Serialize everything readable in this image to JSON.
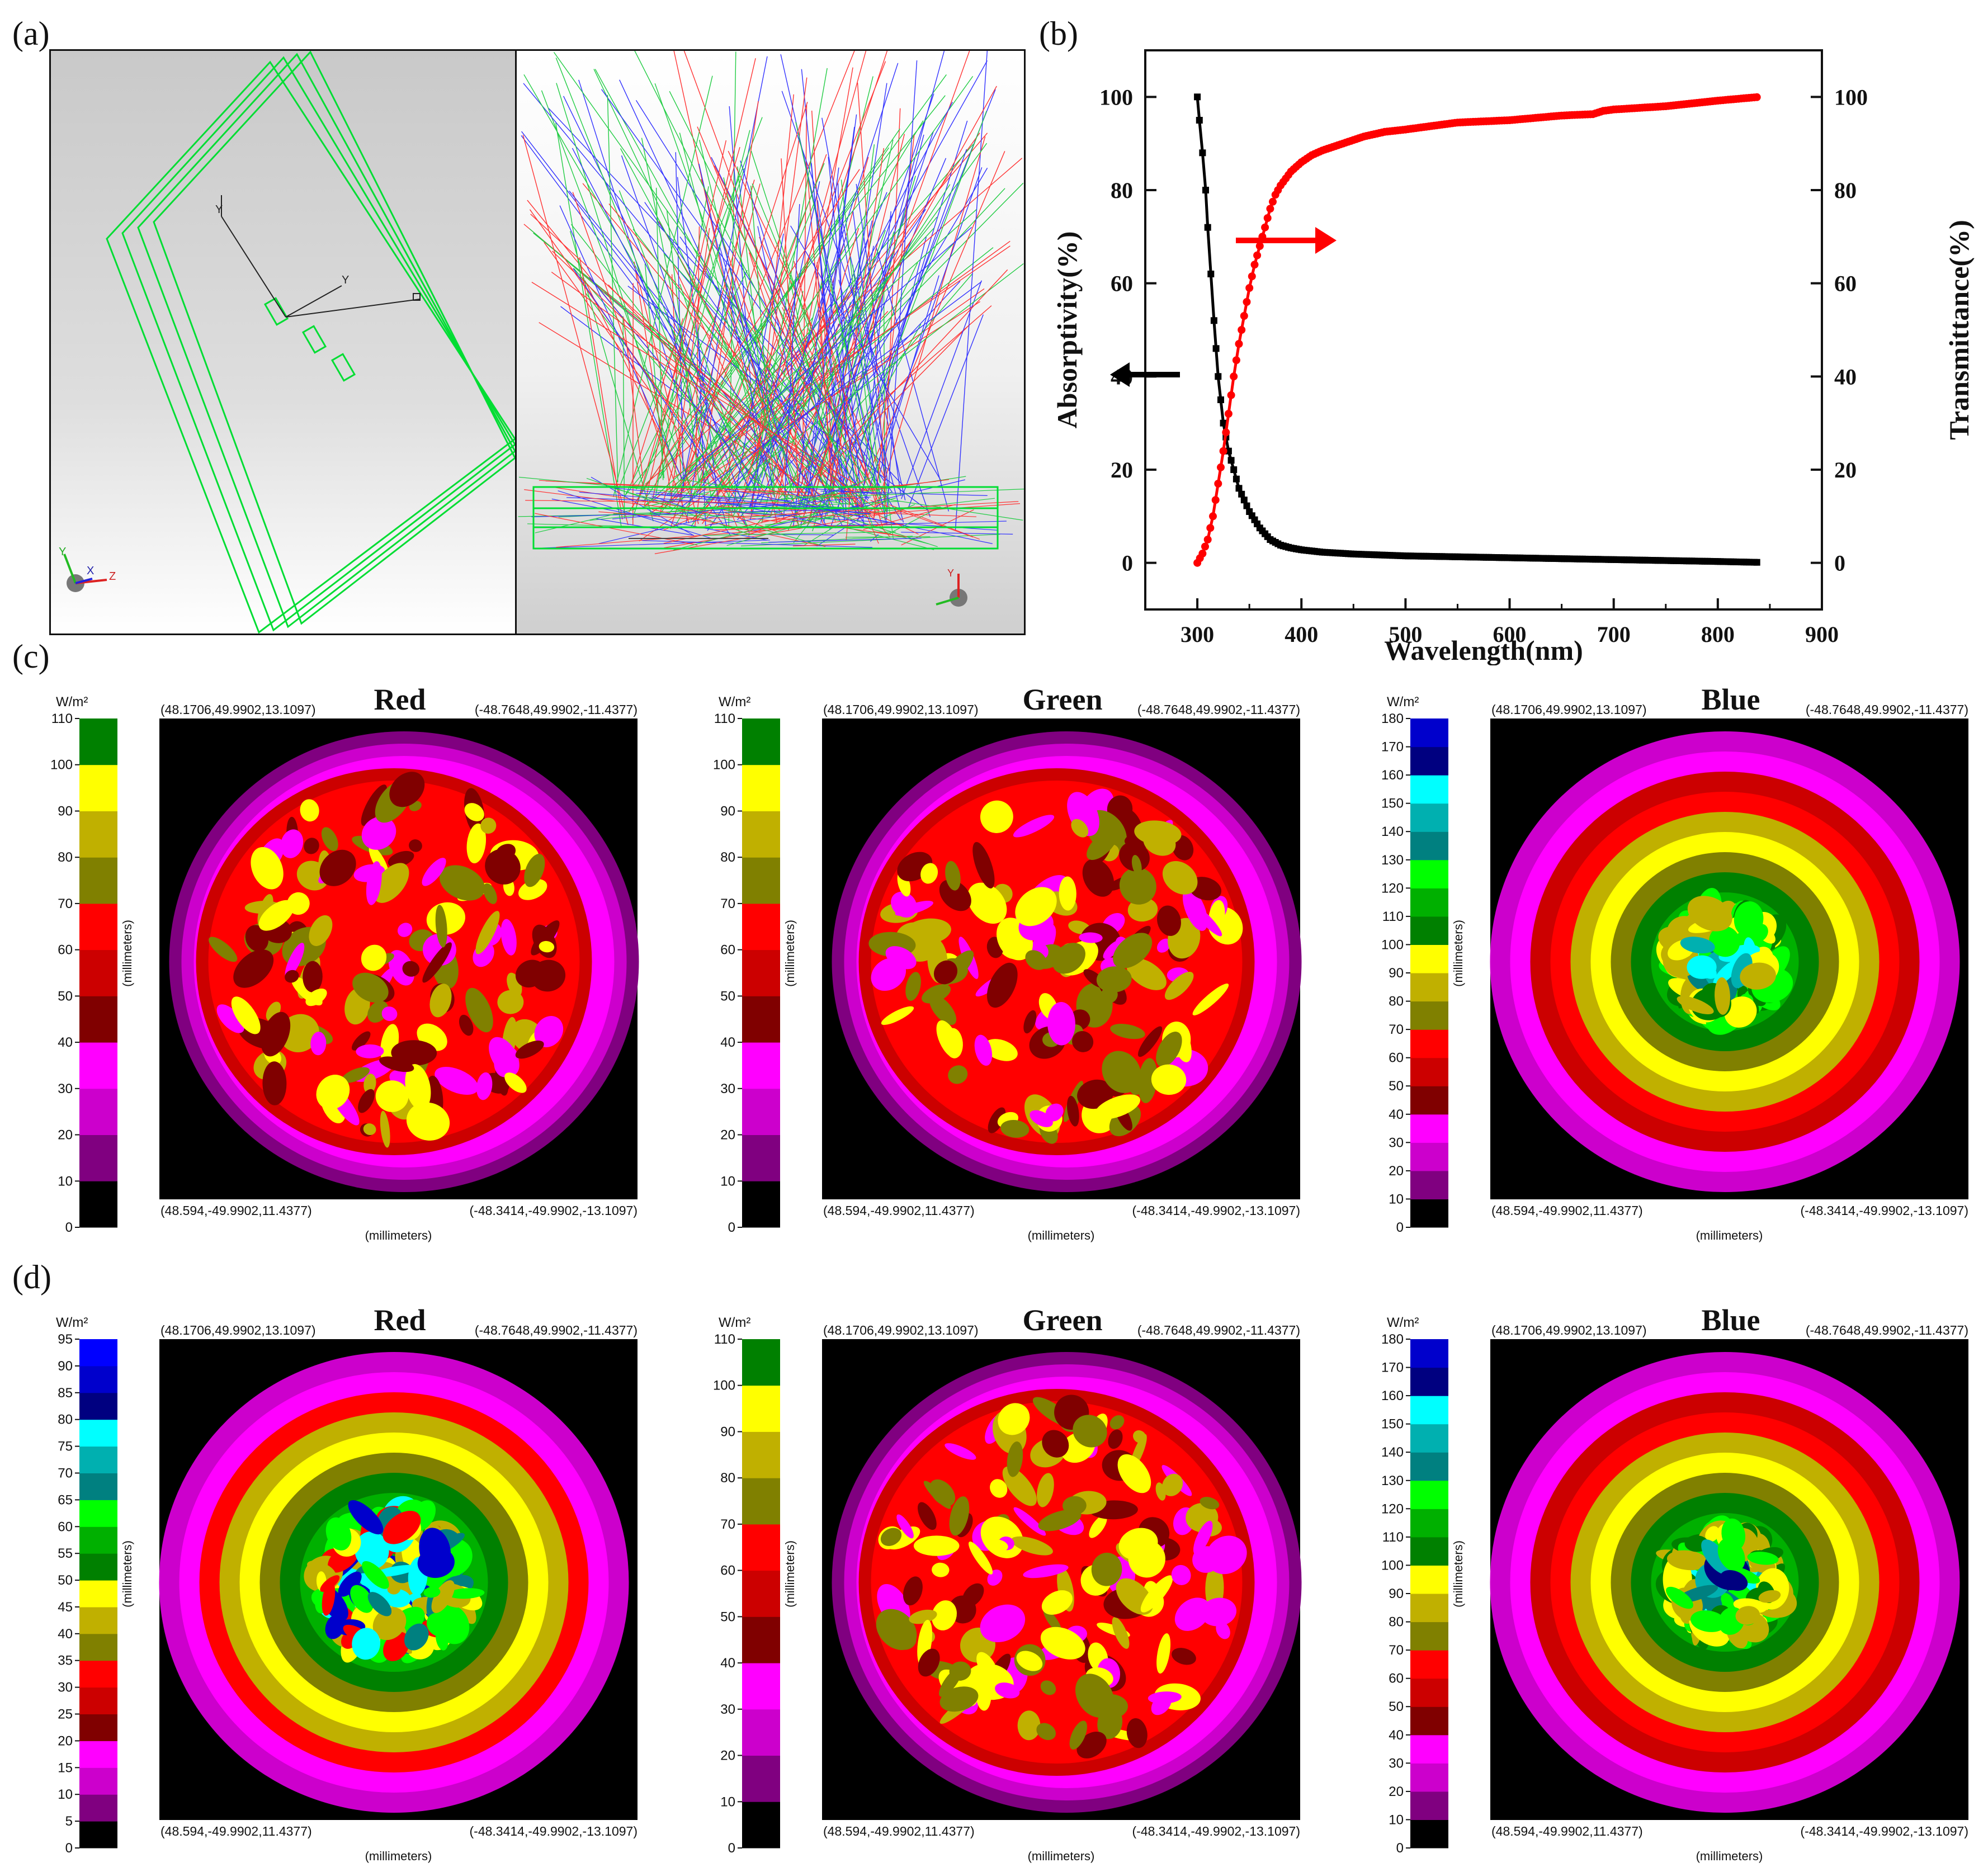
{
  "panel_labels": {
    "a": "(a)",
    "b": "(b)",
    "c": "(c)",
    "d": "(d)"
  },
  "panel_a": {
    "axis_labels": [
      "Y",
      "Y",
      "X",
      "Z",
      "Y",
      "Y"
    ]
  },
  "chart_data": [
    {
      "type": "line",
      "panel": "(b)",
      "xlabel": "Wavelength(nm)",
      "ylabel": "Absorptivity(%)",
      "ylabel_right": "Transmittance(%)",
      "xlim": [
        250,
        900
      ],
      "ylim": [
        -10,
        110
      ],
      "ylim_right": [
        -10,
        110
      ],
      "xticks": [
        300,
        400,
        500,
        600,
        700,
        800,
        900
      ],
      "yticks": [
        0,
        20,
        40,
        60,
        80,
        100
      ],
      "series": [
        {
          "name": "Absorptivity",
          "color": "#000000",
          "axis": "left",
          "x": [
            300,
            302,
            305,
            308,
            310,
            313,
            316,
            320,
            325,
            330,
            335,
            340,
            350,
            360,
            370,
            380,
            390,
            400,
            420,
            450,
            500,
            550,
            600,
            650,
            700,
            750,
            800,
            840
          ],
          "y": [
            100,
            95,
            88,
            80,
            72,
            62,
            52,
            40,
            30,
            24,
            20,
            16,
            11,
            7.5,
            5,
            3.8,
            3.2,
            2.8,
            2.3,
            1.9,
            1.5,
            1.3,
            1.1,
            0.9,
            0.7,
            0.5,
            0.3,
            0.1
          ]
        },
        {
          "name": "Transmittance",
          "color": "#ff0000",
          "axis": "right",
          "x": [
            300,
            305,
            310,
            315,
            320,
            325,
            330,
            335,
            340,
            345,
            350,
            355,
            360,
            365,
            370,
            375,
            380,
            390,
            400,
            410,
            420,
            440,
            460,
            480,
            500,
            550,
            600,
            650,
            680,
            690,
            700,
            750,
            800,
            840
          ],
          "y": [
            0,
            2,
            5,
            10,
            17,
            24,
            32,
            40,
            47,
            53,
            59,
            64,
            68,
            72,
            76,
            79,
            81,
            84,
            86,
            87.5,
            88.5,
            90,
            91.5,
            92.5,
            93,
            94.5,
            95,
            96,
            96.3,
            97,
            97.3,
            98,
            99.2,
            100
          ]
        }
      ],
      "annotations": [
        "arrow-left-black",
        "arrow-right-red"
      ]
    },
    {
      "type": "heatmap",
      "panel": "(c)",
      "title": "Red",
      "unit": "W/m²",
      "scale": [
        "0",
        "10",
        "20",
        "30",
        "40",
        "50",
        "60",
        "70",
        "80",
        "90",
        "100",
        "110"
      ],
      "coords": {
        "tl": "(48.1706,49.9902,13.1097)",
        "tr": "(-48.7648,49.9902,-11.4377)",
        "bl": "(48.594,-49.9902,11.4377)",
        "br": "(-48.3414,-49.9902,-13.1097)"
      },
      "axis_x": "(millimeters)",
      "axis_y": "(millimeters)"
    },
    {
      "type": "heatmap",
      "panel": "(c)",
      "title": "Green",
      "unit": "W/m²",
      "scale": [
        "0",
        "10",
        "20",
        "30",
        "40",
        "50",
        "60",
        "70",
        "80",
        "90",
        "100",
        "110"
      ],
      "coords": {
        "tl": "(48.1706,49.9902,13.1097)",
        "tr": "(-48.7648,49.9902,-11.4377)",
        "bl": "(48.594,-49.9902,11.4377)",
        "br": "(-48.3414,-49.9902,-13.1097)"
      },
      "axis_x": "(millimeters)",
      "axis_y": "(millimeters)"
    },
    {
      "type": "heatmap",
      "panel": "(c)",
      "title": "Blue",
      "unit": "W/m²",
      "scale": [
        "0",
        "10",
        "20",
        "30",
        "40",
        "50",
        "60",
        "70",
        "80",
        "90",
        "100",
        "110",
        "120",
        "130",
        "140",
        "150",
        "160",
        "170",
        "180"
      ],
      "coords": {
        "tl": "(48.1706,49.9902,13.1097)",
        "tr": "(-48.7648,49.9902,-11.4377)",
        "bl": "(48.594,-49.9902,11.4377)",
        "br": "(-48.3414,-49.9902,-13.1097)"
      },
      "axis_x": "(millimeters)",
      "axis_y": "(millimeters)"
    },
    {
      "type": "heatmap",
      "panel": "(d)",
      "title": "Red",
      "unit": "W/m²",
      "scale": [
        "0",
        "5",
        "10",
        "15",
        "20",
        "25",
        "30",
        "35",
        "40",
        "45",
        "50",
        "55",
        "60",
        "65",
        "70",
        "75",
        "80",
        "85",
        "90",
        "95"
      ],
      "coords": {
        "tl": "(48.1706,49.9902,13.1097)",
        "tr": "(-48.7648,49.9902,-11.4377)",
        "bl": "(48.594,-49.9902,11.4377)",
        "br": "(-48.3414,-49.9902,-13.1097)"
      },
      "axis_x": "(millimeters)",
      "axis_y": "(millimeters)"
    },
    {
      "type": "heatmap",
      "panel": "(d)",
      "title": "Green",
      "unit": "W/m²",
      "scale": [
        "0",
        "10",
        "20",
        "30",
        "40",
        "50",
        "60",
        "70",
        "80",
        "90",
        "100",
        "110"
      ],
      "coords": {
        "tl": "(48.1706,49.9902,13.1097)",
        "tr": "(-48.7648,49.9902,-11.4377)",
        "bl": "(48.594,-49.9902,11.4377)",
        "br": "(-48.3414,-49.9902,-13.1097)"
      },
      "axis_x": "(millimeters)",
      "axis_y": "(millimeters)"
    },
    {
      "type": "heatmap",
      "panel": "(d)",
      "title": "Blue",
      "unit": "W/m²",
      "scale": [
        "0",
        "10",
        "20",
        "30",
        "40",
        "50",
        "60",
        "70",
        "80",
        "90",
        "100",
        "110",
        "120",
        "130",
        "140",
        "150",
        "160",
        "170",
        "180"
      ],
      "coords": {
        "tl": "(48.1706,49.9902,13.1097)",
        "tr": "(-48.7648,49.9902,-11.4377)",
        "bl": "(48.594,-49.9902,11.4377)",
        "br": "(-48.3414,-49.9902,-13.1097)"
      },
      "axis_x": "(millimeters)",
      "axis_y": "(millimeters)"
    }
  ],
  "colors": {
    "scale12": [
      "#000000",
      "#800080",
      "#cc00cc",
      "#ff00ff",
      "#800000",
      "#cc0000",
      "#ff0000",
      "#808000",
      "#c0b000",
      "#ffff00",
      "#008000"
    ],
    "scale18": [
      "#000000",
      "#800080",
      "#cc00cc",
      "#ff00ff",
      "#800000",
      "#cc0000",
      "#ff0000",
      "#808000",
      "#c0b000",
      "#ffff00",
      "#008000",
      "#00b000",
      "#00ff00",
      "#008080",
      "#00b0b0",
      "#00ffff",
      "#000080",
      "#0000cc"
    ],
    "scale19": [
      "#000000",
      "#800080",
      "#cc00cc",
      "#ff00ff",
      "#800000",
      "#cc0000",
      "#ff0000",
      "#808000",
      "#c0b000",
      "#ffff00",
      "#008000",
      "#00b000",
      "#00ff00",
      "#008080",
      "#00b0b0",
      "#00ffff",
      "#000080",
      "#0000cc",
      "#0000ff"
    ]
  }
}
